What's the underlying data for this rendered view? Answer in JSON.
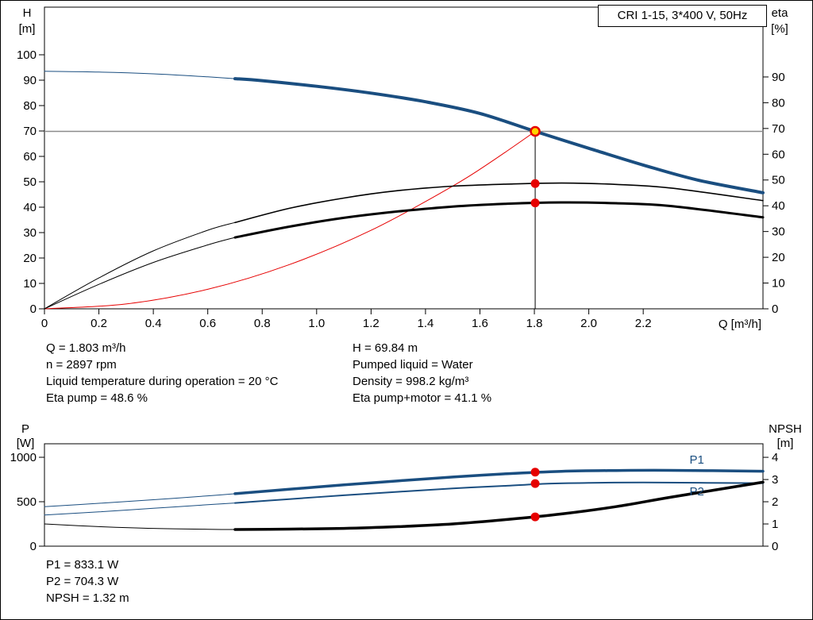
{
  "title_box": {
    "label": "CRI 1-15, 3*400 V, 50Hz"
  },
  "info": {
    "left": [
      "Q = 1.803 m³/h",
      "n = 2897 rpm",
      "Liquid temperature during operation = 20 °C",
      "Eta pump = 48.6 %"
    ],
    "right": [
      "H = 69.84 m",
      "Pumped liquid = Water",
      "Density = 998.2 kg/m³",
      "Eta pump+motor = 41.1 %"
    ],
    "bottom": [
      "P1 = 833.1 W",
      "P2 = 704.3 W",
      "NPSH = 1.32 m"
    ]
  },
  "colors": {
    "blue": "#1a4e80",
    "red": "#e60000",
    "yellow": "#ffd400",
    "gray": "#8c8c8c",
    "black": "#000000"
  },
  "chart_data": [
    {
      "id": "hq",
      "type": "line",
      "title": "CRI 1-15, 3*400 V, 50Hz",
      "x": {
        "min": 0,
        "max": 2.64,
        "label": "Q [m³/h]",
        "ticks": [
          [
            0,
            "0"
          ],
          [
            0.2,
            "0.2"
          ],
          [
            0.4,
            "0.4"
          ],
          [
            0.6,
            "0.6"
          ],
          [
            0.8,
            "0.8"
          ],
          [
            1,
            "1.0"
          ],
          [
            1.2,
            "1.2"
          ],
          [
            1.4,
            "1.4"
          ],
          [
            1.6,
            "1.6"
          ],
          [
            1.8,
            "1.8"
          ],
          [
            2,
            "2.0"
          ],
          [
            2.2,
            "2.2"
          ]
        ]
      },
      "y_left": {
        "min": 0,
        "max": 118.75,
        "label_lines": [
          "H",
          "[m]"
        ],
        "ticks": [
          [
            0,
            "0"
          ],
          [
            10,
            "10"
          ],
          [
            20,
            "20"
          ],
          [
            30,
            "30"
          ],
          [
            40,
            "40"
          ],
          [
            50,
            "50"
          ],
          [
            60,
            "60"
          ],
          [
            70,
            "70"
          ],
          [
            80,
            "80"
          ],
          [
            90,
            "90"
          ],
          [
            100,
            "100"
          ]
        ]
      },
      "y_right": {
        "min": 0,
        "max": 117.1,
        "label_lines": [
          "eta",
          "[%]"
        ],
        "ticks": [
          [
            0,
            "0"
          ],
          [
            10,
            "10"
          ],
          [
            20,
            "20"
          ],
          [
            30,
            "30"
          ],
          [
            40,
            "40"
          ],
          [
            50,
            "50"
          ],
          [
            60,
            "60"
          ],
          [
            70,
            "70"
          ],
          [
            80,
            "80"
          ],
          [
            90,
            "90"
          ]
        ]
      },
      "grid": false,
      "ref_lines": [
        {
          "name": "duty-hline",
          "type": "h",
          "axis": "left",
          "y": 69.84,
          "color": "gray",
          "width": 1.5
        },
        {
          "name": "duty-vline",
          "type": "v",
          "axis": "left",
          "x": 1.803,
          "y1": 0,
          "y2": 69.84,
          "color": "black",
          "width": 1
        }
      ],
      "series": [
        {
          "name": "system-curve",
          "axis": "left",
          "color": "red",
          "width": 1,
          "points": [
            [
              0,
              0
            ],
            [
              0.3,
              1.9
            ],
            [
              0.6,
              7.7
            ],
            [
              0.9,
              17.4
            ],
            [
              1.2,
              30.9
            ],
            [
              1.5,
              48.3
            ],
            [
              1.65,
              58.5
            ],
            [
              1.803,
              69.84
            ]
          ]
        },
        {
          "name": "eta-pump-curve-thin",
          "axis": "right",
          "color": "black",
          "width": 1,
          "points": [
            [
              0,
              0
            ],
            [
              0.2,
              12
            ],
            [
              0.4,
              22.5
            ],
            [
              0.6,
              30.5
            ],
            [
              0.7,
              33.5
            ]
          ]
        },
        {
          "name": "eta-pump-curve",
          "axis": "right",
          "color": "black",
          "width": 1.6,
          "points": [
            [
              0.7,
              33.5
            ],
            [
              0.9,
              39
            ],
            [
              1.1,
              43
            ],
            [
              1.3,
              45.9
            ],
            [
              1.5,
              47.6
            ],
            [
              1.7,
              48.4
            ],
            [
              1.9,
              48.8
            ],
            [
              2.1,
              48.3
            ],
            [
              2.3,
              46.9
            ],
            [
              2.64,
              42.0
            ]
          ]
        },
        {
          "name": "eta-pump-motor-curve-thin",
          "axis": "right",
          "color": "black",
          "width": 1,
          "points": [
            [
              0,
              0
            ],
            [
              0.2,
              9.5
            ],
            [
              0.4,
              18
            ],
            [
              0.6,
              24.8
            ],
            [
              0.7,
              27.7
            ]
          ]
        },
        {
          "name": "eta-pump-motor-curve",
          "axis": "right",
          "color": "black",
          "width": 3,
          "points": [
            [
              0.7,
              27.7
            ],
            [
              0.9,
              31.9
            ],
            [
              1.1,
              35.3
            ],
            [
              1.3,
              37.8
            ],
            [
              1.5,
              39.7
            ],
            [
              1.7,
              40.8
            ],
            [
              1.9,
              41.3
            ],
            [
              2.1,
              41.0
            ],
            [
              2.3,
              39.9
            ],
            [
              2.64,
              35.5
            ]
          ]
        },
        {
          "name": "hq-curve-thin",
          "axis": "left",
          "color": "blue",
          "width": 1,
          "points": [
            [
              0,
              93.5
            ],
            [
              0.2,
              93.2
            ],
            [
              0.4,
              92.5
            ],
            [
              0.6,
              91.3
            ],
            [
              0.7,
              90.6
            ]
          ]
        },
        {
          "name": "hq-curve",
          "axis": "left",
          "color": "blue",
          "width": 4,
          "points": [
            [
              0.7,
              90.6
            ],
            [
              0.8,
              89.8
            ],
            [
              1.0,
              87.6
            ],
            [
              1.2,
              84.9
            ],
            [
              1.4,
              81.5
            ],
            [
              1.6,
              76.9
            ],
            [
              1.803,
              69.84
            ],
            [
              2.0,
              63.2
            ],
            [
              2.2,
              56.6
            ],
            [
              2.4,
              50.7
            ],
            [
              2.64,
              45.7
            ]
          ]
        }
      ],
      "markers": [
        {
          "name": "duty-point",
          "axis": "left",
          "x": 1.803,
          "y": 69.84,
          "fill": "yellow",
          "stroke": "red",
          "stroke_width": 2.5,
          "r": 5.5
        },
        {
          "name": "eta-pump-point",
          "axis": "right",
          "x": 1.803,
          "y": 48.6,
          "fill": "red",
          "r": 5.5
        },
        {
          "name": "eta-pump-motor-point",
          "axis": "right",
          "x": 1.803,
          "y": 41.1,
          "fill": "red",
          "r": 5.5
        }
      ]
    },
    {
      "id": "power",
      "type": "line",
      "x": {
        "min": 0,
        "max": 2.64,
        "label": "",
        "ticks": []
      },
      "y_left": {
        "min": 0,
        "max": 1152,
        "label_lines": [
          "P",
          "[W]"
        ],
        "ticks": [
          [
            0,
            "0"
          ],
          [
            500,
            "500"
          ],
          [
            1000,
            "1000"
          ]
        ]
      },
      "y_right": {
        "min": 0,
        "max": 4.61,
        "label_lines": [
          "NPSH",
          "[m]"
        ],
        "ticks": [
          [
            0,
            "0"
          ],
          [
            1,
            "1"
          ],
          [
            2,
            "2"
          ],
          [
            3,
            "3"
          ],
          [
            4,
            "4"
          ]
        ]
      },
      "grid": false,
      "series": [
        {
          "name": "p1-curve-thin",
          "axis": "left",
          "color": "blue",
          "width": 1,
          "points": [
            [
              0,
              445
            ],
            [
              0.2,
              482
            ],
            [
              0.4,
              522
            ],
            [
              0.6,
              566
            ],
            [
              0.7,
              590
            ]
          ]
        },
        {
          "name": "p1-curve",
          "axis": "left",
          "color": "blue",
          "width": 3.5,
          "points": [
            [
              0.7,
              590
            ],
            [
              0.9,
              640
            ],
            [
              1.1,
              689
            ],
            [
              1.3,
              735
            ],
            [
              1.5,
              778
            ],
            [
              1.7,
              815
            ],
            [
              1.9,
              842
            ],
            [
              2.1,
              851
            ],
            [
              2.3,
              853
            ],
            [
              2.64,
              843
            ]
          ]
        },
        {
          "name": "p2-curve-thin",
          "axis": "left",
          "color": "blue",
          "width": 1,
          "points": [
            [
              0,
              350
            ],
            [
              0.2,
              386
            ],
            [
              0.4,
              426
            ],
            [
              0.6,
              466
            ],
            [
              0.7,
              486
            ]
          ]
        },
        {
          "name": "p2-curve",
          "axis": "left",
          "color": "blue",
          "width": 2,
          "points": [
            [
              0.7,
              486
            ],
            [
              0.9,
              530
            ],
            [
              1.1,
              572
            ],
            [
              1.3,
              612
            ],
            [
              1.5,
              650
            ],
            [
              1.7,
              680
            ],
            [
              1.85,
              704
            ],
            [
              2.0,
              712
            ],
            [
              2.2,
              716
            ],
            [
              2.64,
              709
            ]
          ]
        },
        {
          "name": "npsh-curve-thin",
          "axis": "right",
          "color": "black",
          "width": 1,
          "points": [
            [
              0,
              1.0
            ],
            [
              0.2,
              0.88
            ],
            [
              0.4,
              0.8
            ],
            [
              0.6,
              0.76
            ],
            [
              0.7,
              0.75
            ]
          ]
        },
        {
          "name": "npsh-curve",
          "axis": "right",
          "color": "black",
          "width": 3.5,
          "points": [
            [
              0.7,
              0.75
            ],
            [
              0.9,
              0.77
            ],
            [
              1.1,
              0.8
            ],
            [
              1.3,
              0.88
            ],
            [
              1.5,
              1.0
            ],
            [
              1.7,
              1.2
            ],
            [
              1.9,
              1.45
            ],
            [
              2.1,
              1.78
            ],
            [
              2.3,
              2.2
            ],
            [
              2.64,
              2.88
            ]
          ]
        }
      ],
      "markers": [
        {
          "name": "p1-point",
          "axis": "left",
          "x": 1.803,
          "y": 833.1,
          "fill": "red",
          "r": 5.5
        },
        {
          "name": "p2-point",
          "axis": "left",
          "x": 1.803,
          "y": 704.3,
          "fill": "red",
          "r": 5.5
        },
        {
          "name": "npsh-point",
          "axis": "right",
          "x": 1.803,
          "y": 1.32,
          "fill": "red",
          "r": 5.5
        }
      ],
      "annotations": [
        {
          "name": "p1-curve-label",
          "text": "P1",
          "axis": "left",
          "x": 2.37,
          "y": 929,
          "color": "blue"
        },
        {
          "name": "p2-curve-label",
          "text": "P2",
          "axis": "left",
          "x": 2.37,
          "y": 571,
          "color": "blue"
        }
      ]
    }
  ]
}
